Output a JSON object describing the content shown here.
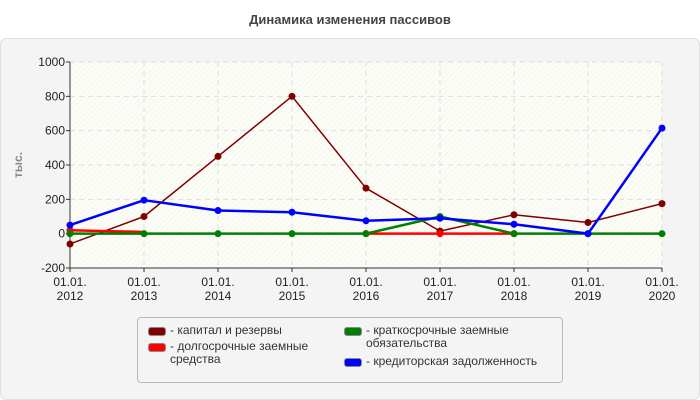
{
  "chart_data": {
    "type": "line",
    "title": "Динамика изменения пассивов",
    "ylabel": "тыс.",
    "xlabel": "",
    "categories": [
      "01.01.\n2012",
      "01.01.\n2013",
      "01.01.\n2014",
      "01.01.\n2015",
      "01.01.\n2016",
      "01.01.\n2017",
      "01.01.\n2018",
      "01.01.\n2019",
      "01.01.\n2020"
    ],
    "ylim": [
      -200,
      1000
    ],
    "yticks": [
      -200,
      0,
      200,
      400,
      600,
      800,
      1000
    ],
    "grid": true,
    "legend_position": "bottom",
    "series": [
      {
        "name": "капитал и резервы",
        "color": "#800000",
        "values": [
          -60,
          100,
          450,
          800,
          265,
          15,
          110,
          65,
          175
        ]
      },
      {
        "name": "долгосрочные заемные средства",
        "color": "#ff0000",
        "values": [
          20,
          10,
          null,
          null,
          0,
          0,
          0,
          null,
          null
        ]
      },
      {
        "name": "краткосрочные заемные обязательства",
        "color": "#008000",
        "values": [
          0,
          0,
          0,
          0,
          0,
          100,
          0,
          0,
          0
        ]
      },
      {
        "name": "кредиторская задолженность",
        "color": "#0000ff",
        "values": [
          50,
          195,
          135,
          125,
          75,
          90,
          55,
          0,
          615
        ]
      }
    ]
  }
}
